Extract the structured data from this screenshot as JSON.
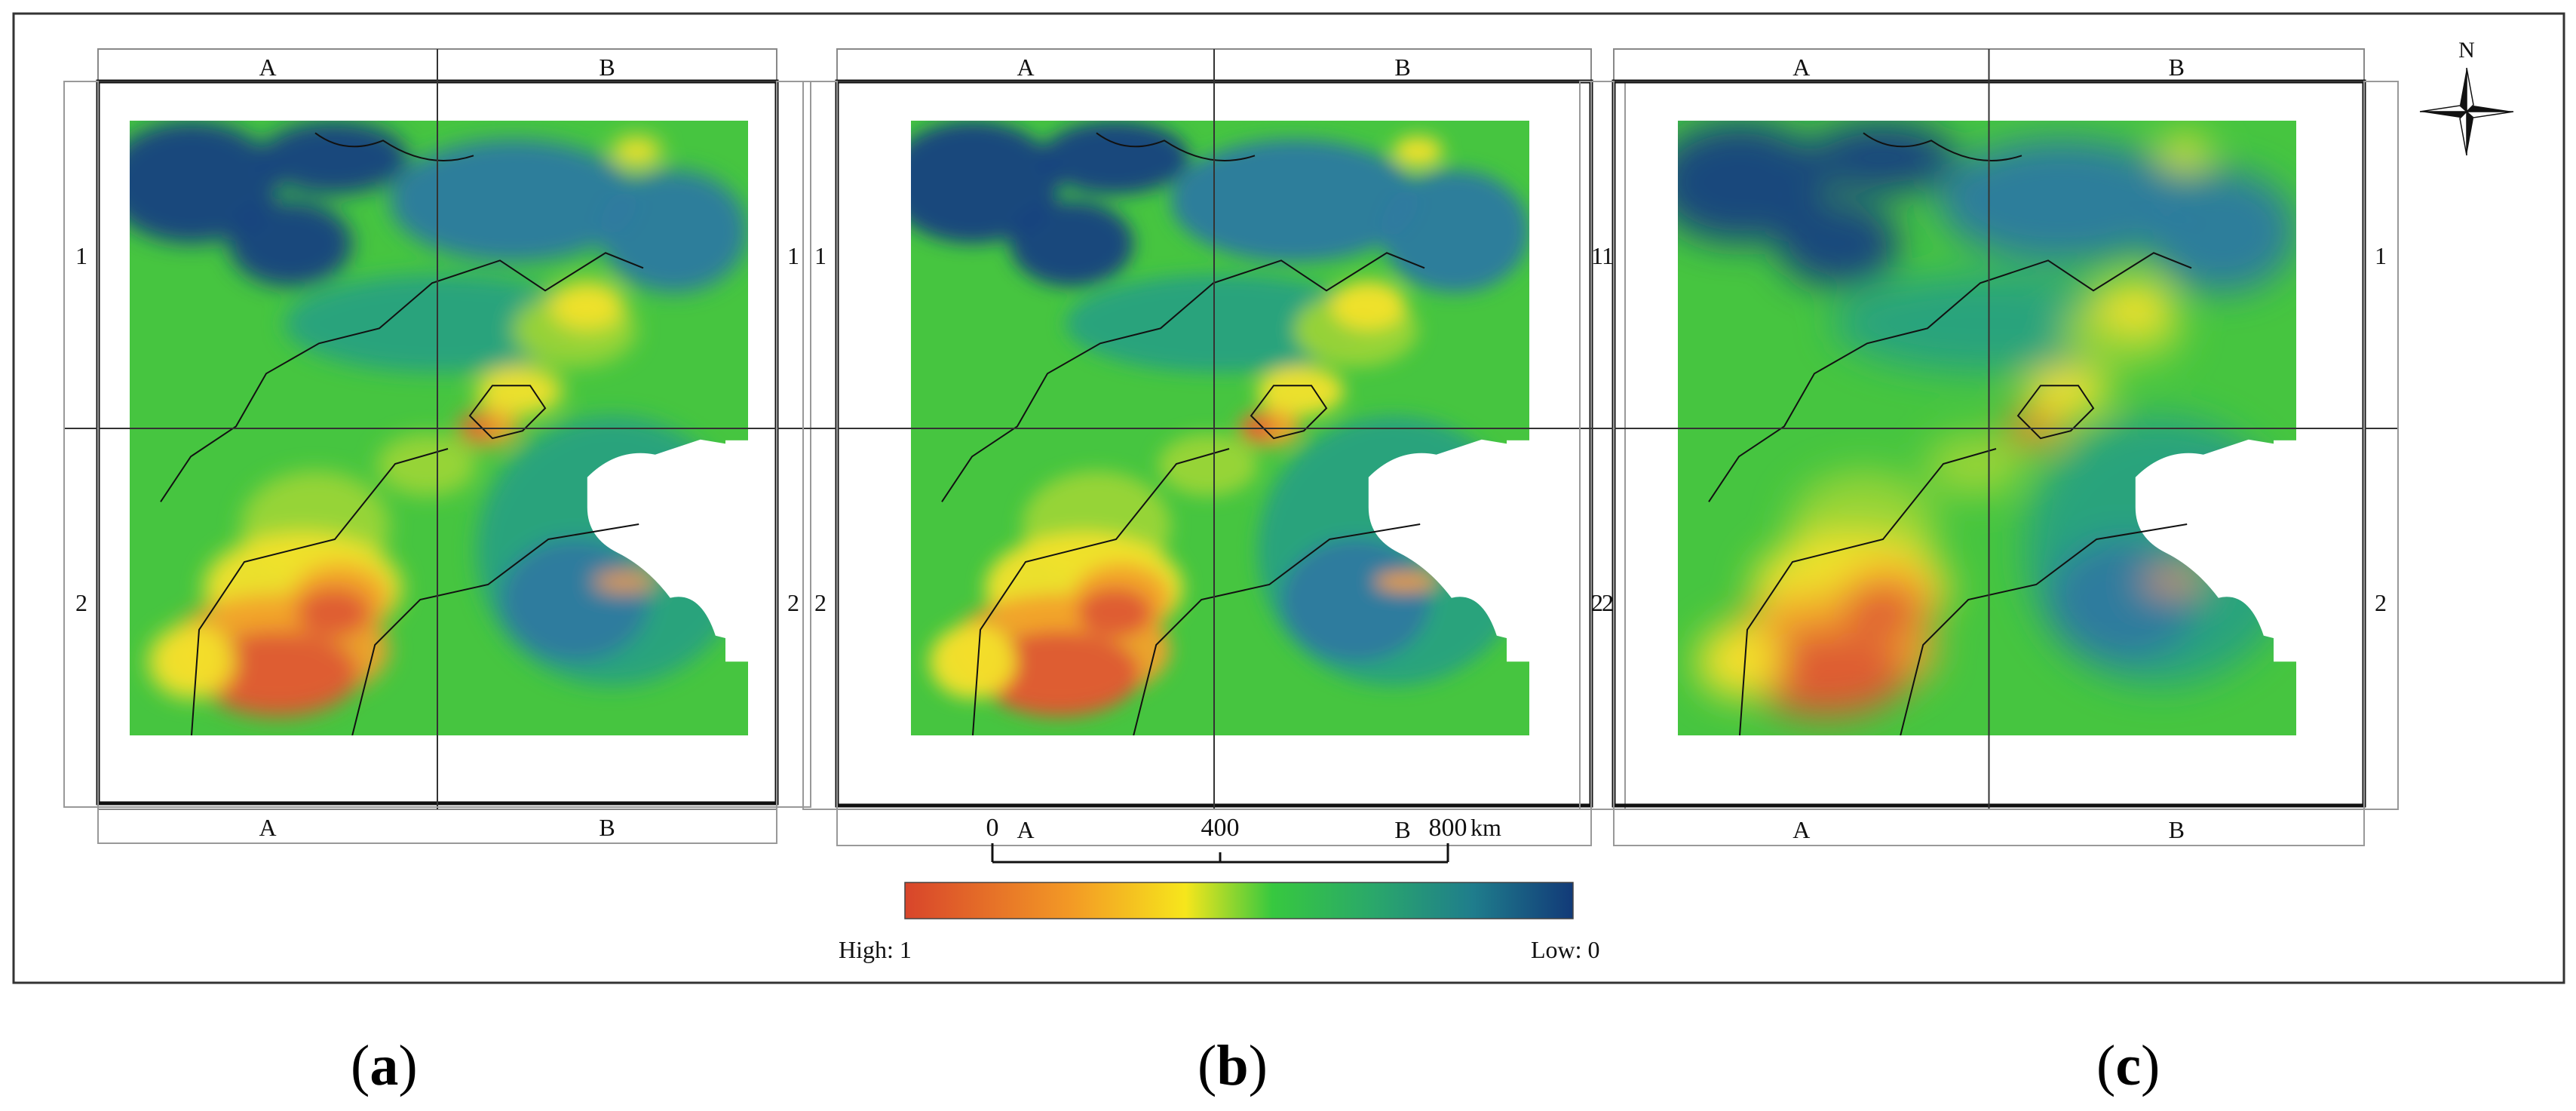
{
  "figure": {
    "panels": [
      {
        "id": "a",
        "caption": "a",
        "grid_columns": [
          "A",
          "B"
        ],
        "grid_rows": [
          "1",
          "2"
        ],
        "texture": "coarse"
      },
      {
        "id": "b",
        "caption": "b",
        "grid_columns": [
          "A",
          "B"
        ],
        "grid_rows": [
          "1",
          "2"
        ],
        "texture": "fine"
      },
      {
        "id": "c",
        "caption": "c",
        "grid_columns": [
          "A",
          "B"
        ],
        "grid_rows": [
          "1",
          "2"
        ],
        "texture": "smooth"
      }
    ],
    "scale_bar": {
      "ticks": [
        "0",
        "400",
        "800"
      ],
      "unit": "km"
    },
    "legend": {
      "high_label": "High: 1",
      "low_label": "Low: 0",
      "colors": [
        "#d8452b",
        "#f39a25",
        "#f6e61c",
        "#37c83f",
        "#2aa86a",
        "#1f7d8c",
        "#123a78"
      ]
    },
    "north_arrow": {
      "label": "N"
    },
    "map_palette": {
      "water_dark": "#17407f",
      "water_mid": "#2d7aa0",
      "teal": "#28a17f",
      "green": "#46c540",
      "lime": "#9bd535",
      "yellow": "#f3e22a",
      "orange": "#f2a12a",
      "red": "#dd5a30",
      "sea": "#ffffff"
    }
  }
}
